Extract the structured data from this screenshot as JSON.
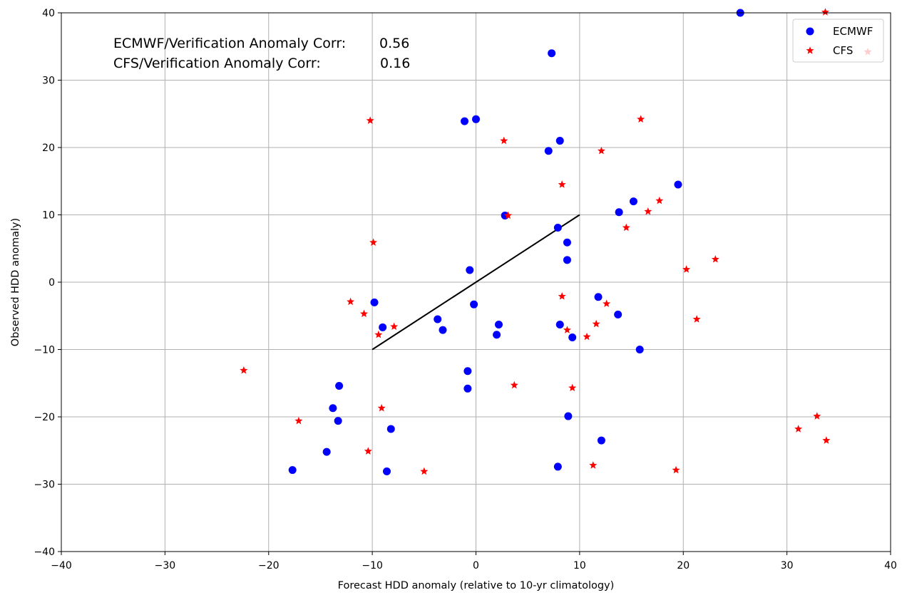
{
  "chart_data": {
    "type": "scatter",
    "title": "",
    "xlabel": "Forecast HDD anomaly (relative to 10-yr climatology)",
    "ylabel": "Observed HDD anomaly)",
    "xlim": [
      -40,
      40
    ],
    "ylim": [
      -40,
      40
    ],
    "xticks": [
      -40,
      -30,
      -20,
      -10,
      0,
      10,
      20,
      30,
      40
    ],
    "yticks": [
      -40,
      -30,
      -20,
      -10,
      0,
      10,
      20,
      30,
      40
    ],
    "grid": true,
    "legend_position": "top-right",
    "annotations": [
      {
        "label": "ECMWF/Verification Anomaly Corr:",
        "value": "0.56"
      },
      {
        "label": "CFS/Verification Anomaly Corr:",
        "value": "0.16"
      }
    ],
    "reference_line": {
      "x": [
        -10,
        10
      ],
      "y": [
        -10,
        10
      ],
      "color": "#000000"
    },
    "series": [
      {
        "name": "ECMWF",
        "marker": "circle",
        "color": "#0000ff",
        "points": [
          [
            25.5,
            40
          ],
          [
            7.3,
            34
          ],
          [
            -1.1,
            23.9
          ],
          [
            0,
            24.2
          ],
          [
            7,
            19.5
          ],
          [
            8.1,
            21
          ],
          [
            19.5,
            14.5
          ],
          [
            15.2,
            12
          ],
          [
            13.8,
            10.4
          ],
          [
            2.8,
            9.9
          ],
          [
            7.9,
            8.1
          ],
          [
            8.8,
            5.9
          ],
          [
            8.8,
            3.3
          ],
          [
            -0.6,
            1.8
          ],
          [
            -9.8,
            -3
          ],
          [
            -0.2,
            -3.3
          ],
          [
            11.8,
            -2.2
          ],
          [
            13.7,
            -4.8
          ],
          [
            -3.7,
            -5.5
          ],
          [
            -3.2,
            -7.1
          ],
          [
            -9,
            -6.7
          ],
          [
            2.2,
            -6.3
          ],
          [
            2,
            -7.8
          ],
          [
            8.1,
            -6.3
          ],
          [
            9.3,
            -8.2
          ],
          [
            15.8,
            -10
          ],
          [
            -0.8,
            -13.2
          ],
          [
            -0.8,
            -15.8
          ],
          [
            -13.2,
            -15.4
          ],
          [
            -13.8,
            -18.7
          ],
          [
            -13.3,
            -20.6
          ],
          [
            -8.2,
            -21.8
          ],
          [
            8.9,
            -19.9
          ],
          [
            12.1,
            -23.5
          ],
          [
            -14.4,
            -25.2
          ],
          [
            -17.7,
            -27.9
          ],
          [
            -8.6,
            -28.1
          ],
          [
            7.9,
            -27.4
          ]
        ]
      },
      {
        "name": "CFS",
        "marker": "star",
        "color": "#ff0000",
        "points": [
          [
            -10.2,
            24
          ],
          [
            2.7,
            21
          ],
          [
            15.9,
            24.2
          ],
          [
            12.1,
            19.5
          ],
          [
            8.3,
            14.5
          ],
          [
            17.7,
            12.1
          ],
          [
            16.6,
            10.5
          ],
          [
            3.1,
            9.9
          ],
          [
            14.5,
            8.1
          ],
          [
            -9.9,
            5.9
          ],
          [
            23.1,
            3.4
          ],
          [
            20.3,
            1.9
          ],
          [
            -12.1,
            -2.9
          ],
          [
            8.3,
            -2.1
          ],
          [
            12.6,
            -3.2
          ],
          [
            -10.8,
            -4.7
          ],
          [
            21.3,
            -5.5
          ],
          [
            -7.9,
            -6.6
          ],
          [
            -9.4,
            -7.8
          ],
          [
            8.8,
            -7.1
          ],
          [
            10.7,
            -8.1
          ],
          [
            11.6,
            -6.2
          ],
          [
            3.7,
            -15.3
          ],
          [
            9.3,
            -15.7
          ],
          [
            -22.4,
            -13.1
          ],
          [
            -17.1,
            -20.6
          ],
          [
            -9.1,
            -18.7
          ],
          [
            -10.4,
            -25.1
          ],
          [
            -5,
            -28.1
          ],
          [
            11.3,
            -27.2
          ],
          [
            19.3,
            -27.9
          ],
          [
            31.1,
            -21.8
          ],
          [
            32.9,
            -19.9
          ],
          [
            33.8,
            -23.5
          ],
          [
            33.7,
            40.1
          ],
          [
            37.8,
            34.2
          ]
        ]
      }
    ]
  }
}
